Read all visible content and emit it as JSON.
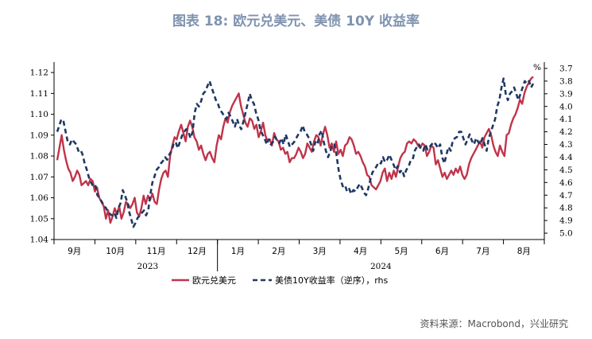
{
  "title": "图表 18: 欧元兑美元、美债 10Y 收益率",
  "source": "资料来源：Macrobond，兴业研究",
  "chart_data": {
    "type": "line",
    "left_axis": {
      "ticks": [
        1.04,
        1.05,
        1.06,
        1.07,
        1.08,
        1.09,
        1.1,
        1.11,
        1.12
      ],
      "range": [
        1.04,
        1.125
      ]
    },
    "right_axis": {
      "unit_label": "%",
      "inverted": true,
      "ticks": [
        3.7,
        3.8,
        3.9,
        4.0,
        4.1,
        4.2,
        4.3,
        4.4,
        4.5,
        4.6,
        4.7,
        4.8,
        4.9,
        5.0
      ],
      "range": [
        3.65,
        5.05
      ]
    },
    "month_labels": [
      "9月",
      "10月",
      "11月",
      "12月",
      "1月",
      "2月",
      "3月",
      "4月",
      "5月",
      "6月",
      "7月",
      "8月"
    ],
    "year_labels": [
      "2023",
      "2024"
    ],
    "series": [
      {
        "name": "欧元兑美元",
        "axis": "left",
        "color": "#c0344a",
        "style": "solid",
        "values": [
          1.078,
          1.084,
          1.09,
          1.083,
          1.078,
          1.074,
          1.072,
          1.068,
          1.07,
          1.073,
          1.071,
          1.066,
          1.067,
          1.068,
          1.066,
          1.069,
          1.068,
          1.063,
          1.065,
          1.06,
          1.058,
          1.056,
          1.05,
          1.054,
          1.048,
          1.051,
          1.055,
          1.052,
          1.056,
          1.05,
          1.053,
          1.058,
          1.057,
          1.055,
          1.057,
          1.06,
          1.053,
          1.051,
          1.055,
          1.061,
          1.057,
          1.061,
          1.059,
          1.062,
          1.058,
          1.057,
          1.064,
          1.069,
          1.072,
          1.073,
          1.07,
          1.08,
          1.085,
          1.089,
          1.088,
          1.092,
          1.095,
          1.091,
          1.087,
          1.094,
          1.097,
          1.094,
          1.089,
          1.087,
          1.083,
          1.085,
          1.081,
          1.078,
          1.081,
          1.082,
          1.079,
          1.077,
          1.085,
          1.09,
          1.088,
          1.094,
          1.098,
          1.096,
          1.101,
          1.104,
          1.106,
          1.108,
          1.11,
          1.104,
          1.1,
          1.096,
          1.094,
          1.098,
          1.097,
          1.093,
          1.095,
          1.089,
          1.092,
          1.096,
          1.09,
          1.087,
          1.088,
          1.085,
          1.091,
          1.088,
          1.087,
          1.083,
          1.084,
          1.081,
          1.082,
          1.077,
          1.079,
          1.079,
          1.081,
          1.084,
          1.082,
          1.079,
          1.081,
          1.086,
          1.084,
          1.082,
          1.087,
          1.09,
          1.089,
          1.085,
          1.09,
          1.094,
          1.09,
          1.084,
          1.086,
          1.082,
          1.087,
          1.081,
          1.083,
          1.08,
          1.085,
          1.086,
          1.089,
          1.088,
          1.085,
          1.081,
          1.082,
          1.08,
          1.077,
          1.075,
          1.071,
          1.07,
          1.066,
          1.065,
          1.064,
          1.066,
          1.068,
          1.072,
          1.074,
          1.068,
          1.072,
          1.069,
          1.073,
          1.07,
          1.075,
          1.079,
          1.081,
          1.082,
          1.086,
          1.087,
          1.086,
          1.088,
          1.087,
          1.085,
          1.084,
          1.086,
          1.085,
          1.08,
          1.082,
          1.085,
          1.084,
          1.076,
          1.078,
          1.074,
          1.07,
          1.072,
          1.069,
          1.071,
          1.073,
          1.071,
          1.074,
          1.072,
          1.075,
          1.071,
          1.069,
          1.071,
          1.076,
          1.079,
          1.081,
          1.083,
          1.085,
          1.087,
          1.084,
          1.089,
          1.091,
          1.093,
          1.09,
          1.085,
          1.082,
          1.08,
          1.085,
          1.082,
          1.08,
          1.09,
          1.091,
          1.095,
          1.098,
          1.1,
          1.103,
          1.107,
          1.105,
          1.11,
          1.113,
          1.115,
          1.117,
          1.118
        ]
      },
      {
        "name": "美债10Y收益率（逆序），rhs",
        "axis": "right",
        "color": "#1f3864",
        "style": "dashed",
        "values": [
          4.2,
          4.15,
          4.1,
          4.12,
          4.2,
          4.28,
          4.3,
          4.26,
          4.28,
          4.3,
          4.35,
          4.34,
          4.38,
          4.45,
          4.5,
          4.56,
          4.6,
          4.63,
          4.62,
          4.7,
          4.72,
          4.75,
          4.78,
          4.8,
          4.83,
          4.85,
          4.86,
          4.84,
          4.88,
          4.8,
          4.76,
          4.66,
          4.7,
          4.75,
          4.83,
          4.89,
          4.95,
          4.92,
          4.88,
          4.86,
          4.84,
          4.82,
          4.86,
          4.82,
          4.7,
          4.6,
          4.55,
          4.5,
          4.48,
          4.45,
          4.43,
          4.4,
          4.42,
          4.38,
          4.35,
          4.3,
          4.28,
          4.33,
          4.28,
          4.23,
          4.2,
          4.18,
          4.2,
          4.25,
          4.2,
          4.05,
          3.98,
          4.0,
          3.96,
          3.9,
          3.88,
          3.84,
          3.8,
          3.85,
          3.9,
          3.95,
          3.98,
          4.03,
          4.05,
          4.08,
          4.1,
          4.05,
          4.08,
          4.12,
          4.16,
          4.1,
          4.15,
          4.18,
          4.12,
          4.05,
          3.98,
          3.9,
          3.95,
          3.98,
          4.05,
          4.1,
          4.18,
          4.22,
          4.25,
          4.3,
          4.26,
          4.3,
          4.28,
          4.24,
          4.27,
          4.29,
          4.25,
          4.3,
          4.22,
          4.27,
          4.32,
          4.3,
          4.28,
          4.25,
          4.22,
          4.2,
          4.15,
          4.2,
          4.22,
          4.25,
          4.3,
          4.35,
          4.28,
          4.3,
          4.22,
          4.19,
          4.28,
          4.35,
          4.4,
          4.36,
          4.3,
          4.3,
          4.38,
          4.5,
          4.58,
          4.63,
          4.62,
          4.67,
          4.65,
          4.69,
          4.66,
          4.67,
          4.64,
          4.61,
          4.64,
          4.68,
          4.7,
          4.65,
          4.58,
          4.52,
          4.5,
          4.47,
          4.44,
          4.45,
          4.4,
          4.44,
          4.42,
          4.38,
          4.42,
          4.46,
          4.5,
          4.47,
          4.52,
          4.5,
          4.55,
          4.5,
          4.48,
          4.43,
          4.42,
          4.35,
          4.32,
          4.3,
          4.34,
          4.35,
          4.3,
          4.34,
          4.32,
          4.3,
          4.28,
          4.3,
          4.33,
          4.3,
          4.4,
          4.45,
          4.38,
          4.32,
          4.35,
          4.27,
          4.25,
          4.24,
          4.2,
          4.2,
          4.25,
          4.3,
          4.26,
          4.22,
          4.27,
          4.3,
          4.25,
          4.28,
          4.3,
          4.25,
          4.3,
          4.35,
          4.25,
          4.2,
          4.15,
          4.1,
          4.0,
          3.95,
          3.85,
          3.78,
          3.9,
          3.95,
          3.9,
          3.88,
          3.85,
          3.9,
          3.95,
          3.9,
          3.85,
          3.8,
          3.82,
          3.8,
          3.85,
          3.82
        ]
      }
    ]
  }
}
